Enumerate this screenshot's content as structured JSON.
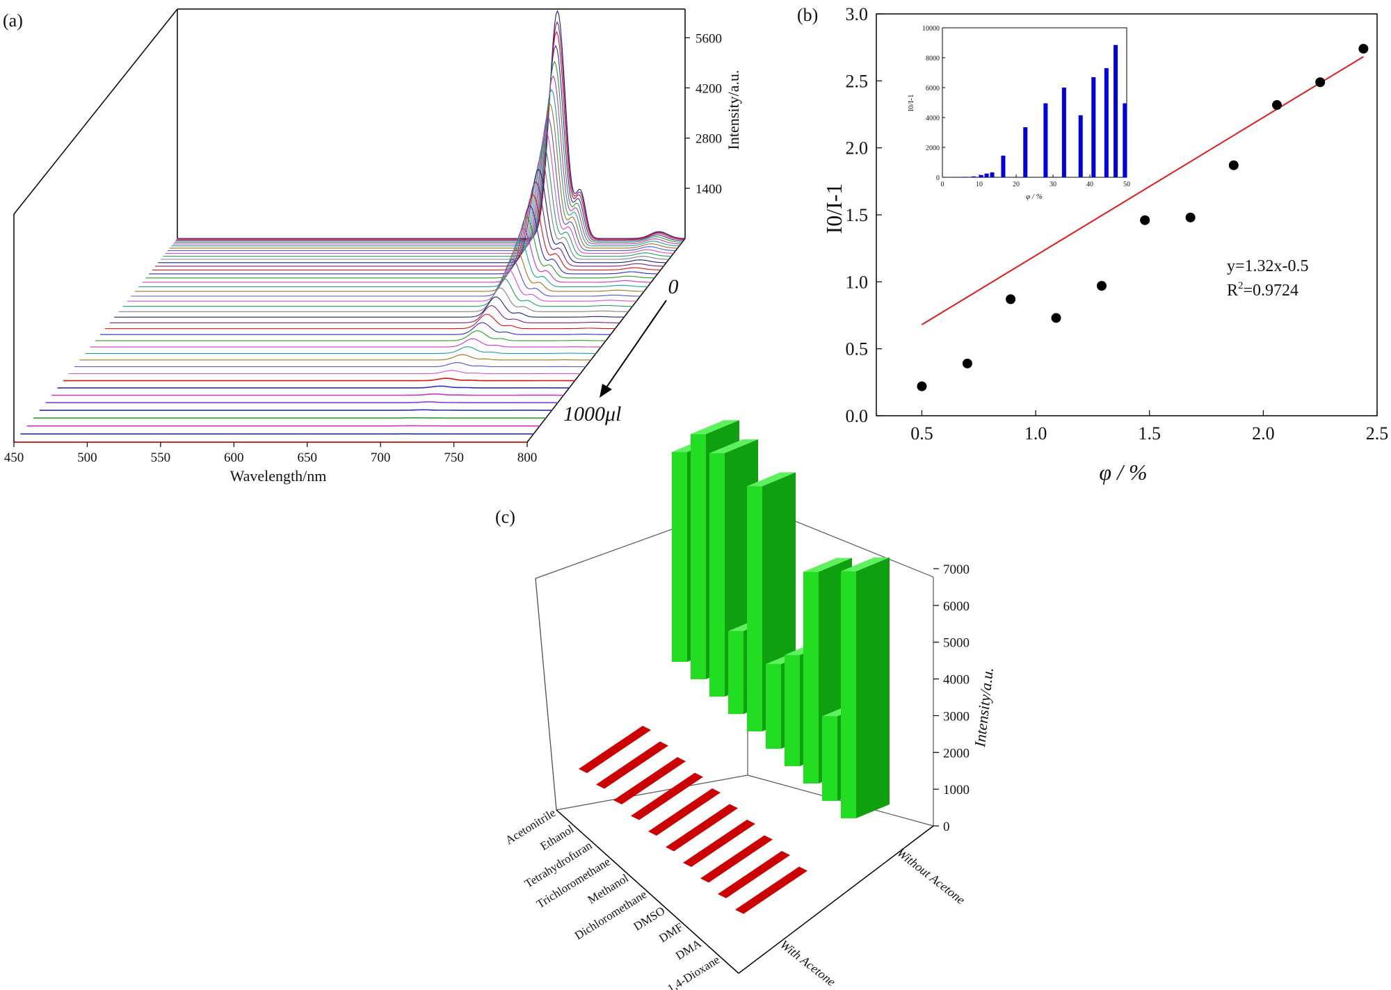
{
  "panel_a": {
    "label": "(a)",
    "chart_data": {
      "type": "line",
      "title": "",
      "xlabel": "Wavelength/nm",
      "zlabel": "Intensity/a.u.",
      "x_ticks": [
        "450",
        "500",
        "550",
        "600",
        "650",
        "700",
        "750",
        "800"
      ],
      "z_ticks": [
        "1400",
        "2800",
        "4200",
        "5600"
      ],
      "xlim": [
        450,
        800
      ],
      "zlim": [
        0,
        6400
      ],
      "depth_start_label": "0",
      "depth_end_label": "1000",
      "depth_unit_label": "μl",
      "peak_main_nm": 712,
      "peak_secondary_nm": 728,
      "peak_minor_nm": 782,
      "peak_intensities": [
        6350,
        6050,
        5800,
        5450,
        5050,
        4700,
        4380,
        4050,
        3750,
        3450,
        3150,
        2900,
        2650,
        2400,
        2150,
        1950,
        1750,
        1550,
        1380,
        1220,
        1070,
        930,
        810,
        700,
        600,
        510,
        430,
        360,
        300,
        250,
        205,
        165,
        130,
        100,
        75,
        55,
        38,
        26,
        16,
        10,
        6,
        3,
        0
      ],
      "baseline_colors": [
        "#d11",
        "#2b2bc0",
        "#c333c3",
        "#2a9a2a",
        "#2b2bc0",
        "#8a3ad0",
        "#c333c3",
        "#2b2bc0",
        "#d11"
      ],
      "curve_colors": [
        "#1f1f7a",
        "#7a1f7a",
        "#d11",
        "#2b2bc0",
        "#2a9a2a",
        "#c333c3",
        "#18a0a0",
        "#a07020",
        "#5050d0",
        "#d050d0",
        "#20a060",
        "#808080"
      ]
    }
  },
  "panel_b": {
    "label": "(b)",
    "chart_data": {
      "type": "scatter",
      "xlabel": "φ / %",
      "ylabel": "I0/I-1",
      "xlim": [
        0.3,
        2.5
      ],
      "ylim": [
        0,
        3.0
      ],
      "x_ticks": [
        "0.5",
        "1.0",
        "1.5",
        "2.0",
        "2.5"
      ],
      "y_ticks": [
        "0.0",
        "0.5",
        "1.0",
        "1.5",
        "2.0",
        "2.5",
        "3.0"
      ],
      "x": [
        0.5,
        0.7,
        0.89,
        1.09,
        1.29,
        1.48,
        1.68,
        1.87,
        2.06,
        2.25,
        2.44
      ],
      "y": [
        0.22,
        0.39,
        0.87,
        0.73,
        0.97,
        1.46,
        1.48,
        1.87,
        2.32,
        2.49,
        2.74
      ],
      "fit_line": {
        "slope": 1.32,
        "intercept": -0.5,
        "color": "#e31a1c"
      },
      "equation": "y=1.32x-0.5",
      "r2_label": "R",
      "r2_sup": "2",
      "r2_value": "=0.9724",
      "inset": {
        "type": "bar",
        "xlabel": "φ / %",
        "ylabel": "I0/I-1",
        "xlim": [
          0,
          50
        ],
        "ylim": [
          0,
          10000
        ],
        "x_ticks": [
          "0",
          "10",
          "20",
          "30",
          "40",
          "50"
        ],
        "y_ticks": [
          "0",
          "2000",
          "4000",
          "6000",
          "8000",
          "10000"
        ],
        "x": [
          6,
          8.5,
          10.5,
          12,
          13.5,
          16.5,
          22.5,
          28,
          33,
          37.5,
          41,
          44.5,
          47,
          49.5
        ],
        "values": [
          30,
          60,
          150,
          250,
          330,
          1450,
          3350,
          4950,
          6000,
          4150,
          6700,
          7300,
          8850,
          4950
        ],
        "color": "#0000e0"
      }
    }
  },
  "panel_c": {
    "label": "(c)",
    "chart_data": {
      "type": "bar",
      "title": "",
      "zlabel": "Intensity/a.u.",
      "z_ticks": [
        "0",
        "1000",
        "2000",
        "3000",
        "4000",
        "5000",
        "6000",
        "7000"
      ],
      "zlim": [
        0,
        7000
      ],
      "categories": [
        "Acetonitrile",
        "Ethanol",
        "Tetrahydrofuran",
        "Trichloromethane",
        "Methanol",
        "Dichloromethane",
        "DMSO",
        "DMF",
        "DMA",
        "1,4-Dioxane"
      ],
      "series_labels": [
        "With Acetone",
        "Without Acetone"
      ],
      "series": [
        {
          "name": "With Acetone",
          "values": [
            60,
            60,
            60,
            60,
            60,
            60,
            60,
            60,
            60,
            60
          ],
          "color": "#cc0000"
        },
        {
          "name": "Without Acetone",
          "values": [
            5950,
            6950,
            6900,
            2350,
            6950,
            2400,
            3150,
            6000,
            2400,
            7000
          ],
          "color": "#22dd22"
        }
      ]
    }
  }
}
